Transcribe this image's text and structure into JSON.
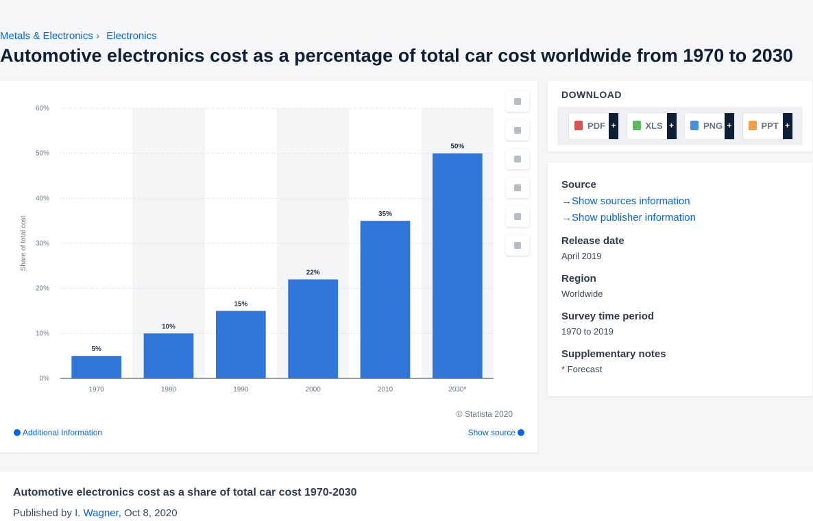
{
  "breadcrumb": {
    "items": [
      "Metals & Electronics",
      "Electronics"
    ],
    "separator": "›"
  },
  "title": "Automotive electronics cost as a percentage of total car cost worldwide from 1970 to 2030",
  "chart_data": {
    "type": "bar",
    "y_label": "Share of total cost",
    "categories": [
      "1970",
      "1980",
      "1990",
      "2000",
      "2010",
      "2030*"
    ],
    "values": [
      5,
      10,
      15,
      22,
      35,
      50
    ],
    "value_labels": [
      "5%",
      "10%",
      "15%",
      "22%",
      "35%",
      "50%"
    ],
    "color": "#3275d9",
    "ylim": [
      0,
      60
    ],
    "yticks": [
      {
        "value": 0,
        "label": "0%"
      },
      {
        "value": 10,
        "label": "10%"
      },
      {
        "value": 20,
        "label": "20%"
      },
      {
        "value": 30,
        "label": "30%"
      },
      {
        "value": 40,
        "label": "40%"
      },
      {
        "value": 50,
        "label": "50%"
      },
      {
        "value": 60,
        "label": "60%"
      }
    ],
    "grid": true,
    "copyright": "© Statista 2020"
  },
  "chart_links": {
    "additional": "Additional Information",
    "show_source": "Show source"
  },
  "download": {
    "title": "DOWNLOAD",
    "formats": [
      "PDF",
      "XLS",
      "PNG",
      "PPT"
    ],
    "plus": "+"
  },
  "details": {
    "source_title": "Source",
    "links": [
      "Show sources information",
      "Show publisher information"
    ],
    "items": [
      {
        "label": "Release date",
        "value": "April 2019"
      },
      {
        "label": "Region",
        "value": "Worldwide"
      },
      {
        "label": "Survey time period",
        "value": "1970 to 2019"
      },
      {
        "label": "Supplementary notes",
        "value": "* Forecast"
      }
    ]
  },
  "footer": {
    "title": "Automotive electronics cost as a share of total car cost 1970-2030",
    "published_by": "Published by",
    "author": "I. Wagner",
    "date": ", Oct 8, 2020"
  }
}
